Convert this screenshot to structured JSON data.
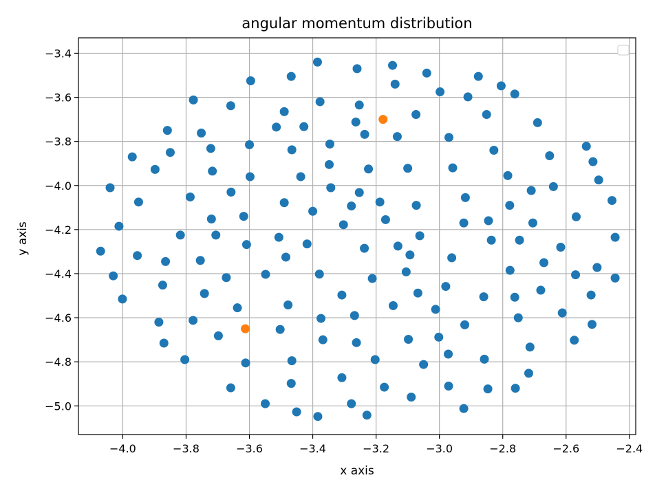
{
  "chart_data": {
    "type": "scatter",
    "title": "angular momentum distribution",
    "xlabel": "x axis",
    "ylabel": "y axis",
    "xlim": [
      -4.14,
      -2.38
    ],
    "ylim": [
      -5.13,
      -3.33
    ],
    "x_ticks": [
      -4.0,
      -3.8,
      -3.6,
      -3.4,
      -3.2,
      -3.0,
      -2.8,
      -2.6,
      -2.4
    ],
    "x_tick_labels": [
      "−4.0",
      "−3.8",
      "−3.6",
      "−3.4",
      "−3.2",
      "−3.0",
      "−2.8",
      "−2.6",
      "−2.4"
    ],
    "y_ticks": [
      -3.4,
      -3.6,
      -3.8,
      -4.0,
      -4.2,
      -4.4,
      -4.6,
      -4.8,
      -5.0
    ],
    "y_tick_labels": [
      "−3.4",
      "−3.6",
      "−3.8",
      "−4.0",
      "−4.2",
      "−4.4",
      "−4.6",
      "−4.8",
      "−5.0"
    ],
    "grid": true,
    "legend": {
      "placement": "top-right",
      "entries": []
    },
    "series": [
      {
        "color": "#1f77b4",
        "points": [
          [
            -3.385,
            -3.44
          ],
          [
            -3.148,
            -3.455
          ],
          [
            -3.26,
            -3.47
          ],
          [
            -3.04,
            -3.49
          ],
          [
            -3.468,
            -3.505
          ],
          [
            -2.877,
            -3.505
          ],
          [
            -3.596,
            -3.525
          ],
          [
            -3.14,
            -3.54
          ],
          [
            -2.805,
            -3.548
          ],
          [
            -2.998,
            -3.575
          ],
          [
            -2.762,
            -3.585
          ],
          [
            -2.91,
            -3.598
          ],
          [
            -3.777,
            -3.612
          ],
          [
            -3.377,
            -3.62
          ],
          [
            -3.253,
            -3.635
          ],
          [
            -3.659,
            -3.638
          ],
          [
            -3.49,
            -3.665
          ],
          [
            -2.851,
            -3.678
          ],
          [
            -3.074,
            -3.678
          ],
          [
            -3.264,
            -3.712
          ],
          [
            -2.69,
            -3.715
          ],
          [
            -3.515,
            -3.735
          ],
          [
            -3.428,
            -3.733
          ],
          [
            -3.859,
            -3.75
          ],
          [
            -3.752,
            -3.762
          ],
          [
            -3.236,
            -3.768
          ],
          [
            -3.133,
            -3.778
          ],
          [
            -2.97,
            -3.782
          ],
          [
            -3.6,
            -3.815
          ],
          [
            -3.346,
            -3.812
          ],
          [
            -2.536,
            -3.822
          ],
          [
            -3.722,
            -3.832
          ],
          [
            -3.466,
            -3.838
          ],
          [
            -2.828,
            -3.84
          ],
          [
            -3.85,
            -3.85
          ],
          [
            -2.652,
            -3.865
          ],
          [
            -3.97,
            -3.87
          ],
          [
            -2.515,
            -3.892
          ],
          [
            -3.348,
            -3.905
          ],
          [
            -2.958,
            -3.92
          ],
          [
            -3.1,
            -3.922
          ],
          [
            -3.224,
            -3.925
          ],
          [
            -3.898,
            -3.927
          ],
          [
            -3.717,
            -3.935
          ],
          [
            -2.784,
            -3.955
          ],
          [
            -3.598,
            -3.96
          ],
          [
            -3.438,
            -3.96
          ],
          [
            -2.497,
            -3.975
          ],
          [
            -4.04,
            -4.01
          ],
          [
            -3.343,
            -4.01
          ],
          [
            -2.64,
            -4.005
          ],
          [
            -2.71,
            -4.023
          ],
          [
            -3.658,
            -4.03
          ],
          [
            -3.253,
            -4.032
          ],
          [
            -3.787,
            -4.052
          ],
          [
            -2.918,
            -4.055
          ],
          [
            -3.95,
            -4.075
          ],
          [
            -2.455,
            -4.068
          ],
          [
            -3.49,
            -4.078
          ],
          [
            -3.188,
            -4.075
          ],
          [
            -3.073,
            -4.09
          ],
          [
            -2.778,
            -4.09
          ],
          [
            -3.278,
            -4.093
          ],
          [
            -3.4,
            -4.117
          ],
          [
            -3.618,
            -4.14
          ],
          [
            -2.568,
            -4.142
          ],
          [
            -3.72,
            -4.152
          ],
          [
            -3.17,
            -4.155
          ],
          [
            -2.845,
            -4.16
          ],
          [
            -2.923,
            -4.17
          ],
          [
            -2.705,
            -4.17
          ],
          [
            -3.303,
            -4.178
          ],
          [
            -4.012,
            -4.185
          ],
          [
            -3.706,
            -4.225
          ],
          [
            -3.818,
            -4.225
          ],
          [
            -3.062,
            -4.228
          ],
          [
            -3.507,
            -4.235
          ],
          [
            -2.445,
            -4.235
          ],
          [
            -2.836,
            -4.248
          ],
          [
            -2.747,
            -4.248
          ],
          [
            -3.418,
            -4.265
          ],
          [
            -3.609,
            -4.268
          ],
          [
            -3.131,
            -4.275
          ],
          [
            -2.617,
            -4.28
          ],
          [
            -3.237,
            -4.285
          ],
          [
            -4.07,
            -4.298
          ],
          [
            -3.093,
            -4.315
          ],
          [
            -3.954,
            -4.318
          ],
          [
            -3.485,
            -4.325
          ],
          [
            -2.961,
            -4.328
          ],
          [
            -3.755,
            -4.34
          ],
          [
            -3.865,
            -4.345
          ],
          [
            -2.67,
            -4.35
          ],
          [
            -2.502,
            -4.372
          ],
          [
            -2.777,
            -4.385
          ],
          [
            -3.105,
            -4.392
          ],
          [
            -3.549,
            -4.403
          ],
          [
            -3.379,
            -4.402
          ],
          [
            -2.57,
            -4.405
          ],
          [
            -4.03,
            -4.41
          ],
          [
            -3.673,
            -4.418
          ],
          [
            -3.212,
            -4.422
          ],
          [
            -2.445,
            -4.42
          ],
          [
            -3.874,
            -4.452
          ],
          [
            -2.98,
            -4.458
          ],
          [
            -2.68,
            -4.475
          ],
          [
            -3.742,
            -4.49
          ],
          [
            -3.068,
            -4.488
          ],
          [
            -3.308,
            -4.497
          ],
          [
            -2.521,
            -4.497
          ],
          [
            -2.86,
            -4.505
          ],
          [
            -2.762,
            -4.507
          ],
          [
            -4.001,
            -4.515
          ],
          [
            -3.478,
            -4.542
          ],
          [
            -3.146,
            -4.545
          ],
          [
            -3.638,
            -4.555
          ],
          [
            -3.012,
            -4.562
          ],
          [
            -2.612,
            -4.578
          ],
          [
            -3.268,
            -4.59
          ],
          [
            -2.751,
            -4.6
          ],
          [
            -3.374,
            -4.603
          ],
          [
            -3.778,
            -4.612
          ],
          [
            -3.886,
            -4.62
          ],
          [
            -2.518,
            -4.63
          ],
          [
            -2.92,
            -4.632
          ],
          [
            -3.698,
            -4.682
          ],
          [
            -3.002,
            -4.688
          ],
          [
            -3.098,
            -4.698
          ],
          [
            -3.368,
            -4.7
          ],
          [
            -2.574,
            -4.702
          ],
          [
            -3.262,
            -4.713
          ],
          [
            -3.87,
            -4.715
          ],
          [
            -2.714,
            -4.733
          ],
          [
            -3.503,
            -4.653
          ],
          [
            -2.972,
            -4.765
          ],
          [
            -2.858,
            -4.788
          ],
          [
            -3.804,
            -4.79
          ],
          [
            -3.203,
            -4.79
          ],
          [
            -3.466,
            -4.795
          ],
          [
            -3.612,
            -4.805
          ],
          [
            -3.05,
            -4.812
          ],
          [
            -2.718,
            -4.852
          ],
          [
            -3.308,
            -4.872
          ],
          [
            -3.468,
            -4.898
          ],
          [
            -2.971,
            -4.91
          ],
          [
            -3.174,
            -4.915
          ],
          [
            -3.659,
            -4.918
          ],
          [
            -2.76,
            -4.92
          ],
          [
            -2.847,
            -4.923
          ],
          [
            -3.089,
            -4.96
          ],
          [
            -3.55,
            -4.99
          ],
          [
            -3.278,
            -4.99
          ],
          [
            -2.923,
            -5.012
          ],
          [
            -3.451,
            -5.027
          ],
          [
            -3.229,
            -5.042
          ],
          [
            -3.384,
            -5.048
          ]
        ]
      },
      {
        "color": "#ff7f0e",
        "points": [
          [
            -3.178,
            -3.7
          ],
          [
            -3.613,
            -4.65
          ]
        ]
      }
    ]
  }
}
